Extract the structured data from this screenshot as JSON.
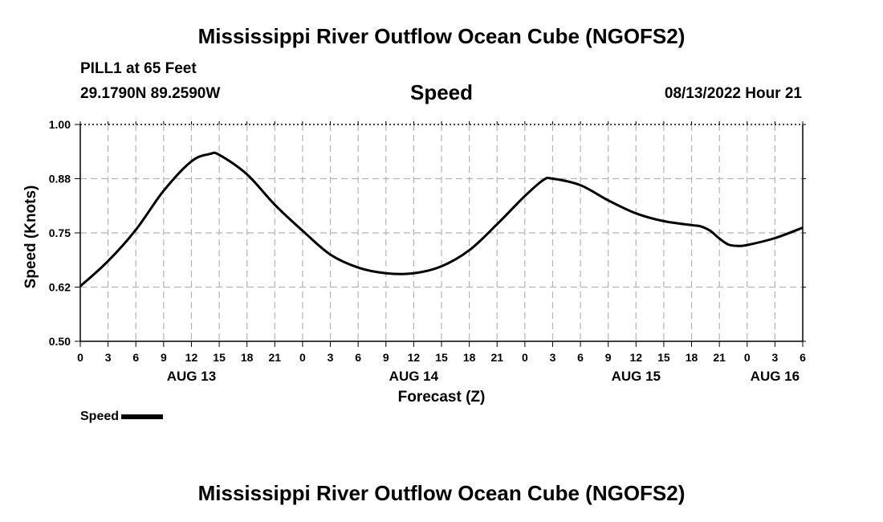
{
  "header": {
    "main_title": "Mississippi River Outflow Ocean Cube (NGOFS2)",
    "station": "PILL1 at 65 Feet",
    "coords": "29.1790N  89.2590W",
    "variable": "Speed",
    "timestamp": "08/13/2022 Hour 21",
    "footer_title": "Mississippi River Outflow Ocean Cube (NGOFS2)"
  },
  "legend": {
    "label": "Speed"
  },
  "colors": {
    "line": "#000000",
    "grid": "#b4b4b4",
    "axis": "#000000"
  },
  "chart_data": {
    "type": "line",
    "title": "Speed",
    "xlabel": "Forecast (Z)",
    "ylabel": "Speed (Knots)",
    "xlim": [
      0,
      78
    ],
    "ylim": [
      0.5,
      1.0
    ],
    "yticks": [
      "0.50",
      "0.62",
      "0.75",
      "0.88",
      "1.00"
    ],
    "ytick_values": [
      0.5,
      0.625,
      0.75,
      0.875,
      1.0
    ],
    "xtick_labels": [
      "0",
      "3",
      "6",
      "9",
      "12",
      "15",
      "18",
      "21",
      "0",
      "3",
      "6",
      "9",
      "12",
      "15",
      "18",
      "21",
      "0",
      "3",
      "6",
      "9",
      "12",
      "15",
      "18",
      "21",
      "0",
      "3",
      "6"
    ],
    "day_labels": [
      {
        "label": "AUG 13",
        "x": 12
      },
      {
        "label": "AUG 14",
        "x": 36
      },
      {
        "label": "AUG 15",
        "x": 60
      },
      {
        "label": "AUG 16",
        "x": 75
      }
    ],
    "series": [
      {
        "name": "Speed",
        "x": [
          0,
          3,
          6,
          9,
          12,
          14,
          15,
          18,
          21,
          24,
          27,
          30,
          33,
          36,
          39,
          42,
          45,
          48,
          50,
          51,
          54,
          57,
          60,
          63,
          66,
          67,
          68,
          69,
          70,
          71,
          72,
          75,
          78
        ],
        "y": [
          0.627,
          0.685,
          0.757,
          0.847,
          0.915,
          0.932,
          0.93,
          0.885,
          0.815,
          0.755,
          0.7,
          0.67,
          0.657,
          0.657,
          0.673,
          0.71,
          0.77,
          0.835,
          0.872,
          0.875,
          0.86,
          0.825,
          0.795,
          0.777,
          0.768,
          0.765,
          0.755,
          0.737,
          0.723,
          0.72,
          0.722,
          0.738,
          0.762
        ]
      }
    ]
  }
}
